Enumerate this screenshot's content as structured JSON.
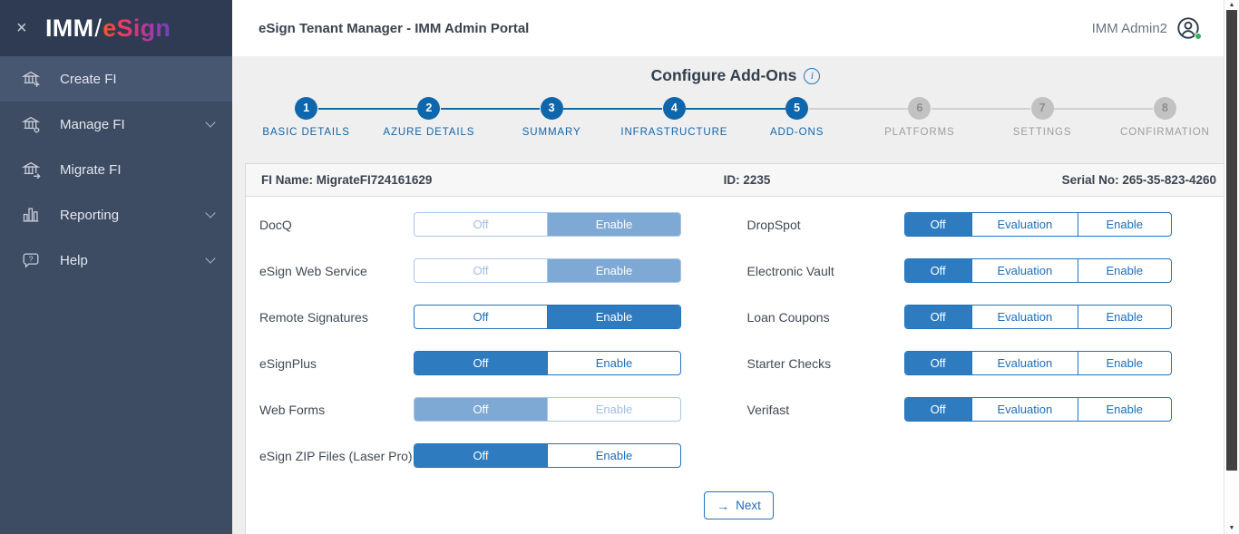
{
  "colors": {
    "accent_blue": "#2E7BC0",
    "step_blue": "#0E67AC",
    "disabled_blue": "#7FA9D5",
    "sidebar_navy": "#3D4B63",
    "sidebar_header_navy": "#2E3B52",
    "content_background": "#EFEFEF",
    "pending_gray": "#C2C2C2",
    "presence_green": "#2FB457"
  },
  "icons": {
    "close": "×",
    "info": "i",
    "next_arrow": "→",
    "scroll_up": "▲",
    "scroll_down": "▼"
  },
  "sidebar": {
    "logo_imm": "IMM",
    "logo_slash": "/",
    "logo_esign": "eSign",
    "items": [
      {
        "label": "Create FI",
        "icon": "bank-plus",
        "active": true,
        "expandable": false
      },
      {
        "label": "Manage FI",
        "icon": "bank-gear",
        "active": false,
        "expandable": true
      },
      {
        "label": "Migrate FI",
        "icon": "bank-arrow",
        "active": false,
        "expandable": false
      },
      {
        "label": "Reporting",
        "icon": "bar-chart",
        "active": false,
        "expandable": true
      },
      {
        "label": "Help",
        "icon": "help-bubble",
        "active": false,
        "expandable": true
      }
    ]
  },
  "header": {
    "title": "eSign Tenant Manager - IMM Admin Portal",
    "user": "IMM Admin2"
  },
  "wizard": {
    "title": "Configure Add-Ons",
    "steps": [
      {
        "num": "1",
        "label": "BASIC DETAILS",
        "state": "active"
      },
      {
        "num": "2",
        "label": "AZURE DETAILS",
        "state": "active"
      },
      {
        "num": "3",
        "label": "SUMMARY",
        "state": "active"
      },
      {
        "num": "4",
        "label": "INFRASTRUCTURE",
        "state": "active"
      },
      {
        "num": "5",
        "label": "ADD-ONS",
        "state": "active"
      },
      {
        "num": "6",
        "label": "PLATFORMS",
        "state": "pending"
      },
      {
        "num": "7",
        "label": "SETTINGS",
        "state": "pending"
      },
      {
        "num": "8",
        "label": "CONFIRMATION",
        "state": "pending"
      }
    ]
  },
  "fi_info": {
    "name": "FI Name: MigrateFI724161629",
    "id": "ID: 2235",
    "serial": "Serial No: 265-35-823-4260"
  },
  "addons": {
    "left": [
      {
        "label": "DocQ",
        "options": [
          "Off",
          "Enable"
        ],
        "selected": "Enable",
        "disabled": true
      },
      {
        "label": "eSign Web Service",
        "options": [
          "Off",
          "Enable"
        ],
        "selected": "Enable",
        "disabled": true
      },
      {
        "label": "Remote Signatures",
        "options": [
          "Off",
          "Enable"
        ],
        "selected": "Enable",
        "disabled": false
      },
      {
        "label": "eSignPlus",
        "options": [
          "Off",
          "Enable"
        ],
        "selected": "Off",
        "disabled": false
      },
      {
        "label": "Web Forms",
        "options": [
          "Off",
          "Enable"
        ],
        "selected": "Off",
        "disabled": true
      },
      {
        "label": "eSign ZIP Files (Laser Pro)",
        "options": [
          "Off",
          "Enable"
        ],
        "selected": "Off",
        "disabled": false
      }
    ],
    "right": [
      {
        "label": "DropSpot",
        "options": [
          "Off",
          "Evaluation",
          "Enable"
        ],
        "selected": "Off",
        "disabled": false
      },
      {
        "label": "Electronic Vault",
        "options": [
          "Off",
          "Evaluation",
          "Enable"
        ],
        "selected": "Off",
        "disabled": false
      },
      {
        "label": "Loan Coupons",
        "options": [
          "Off",
          "Evaluation",
          "Enable"
        ],
        "selected": "Off",
        "disabled": false
      },
      {
        "label": "Starter Checks",
        "options": [
          "Off",
          "Evaluation",
          "Enable"
        ],
        "selected": "Off",
        "disabled": false
      },
      {
        "label": "Verifast",
        "options": [
          "Off",
          "Evaluation",
          "Enable"
        ],
        "selected": "Off",
        "disabled": false
      }
    ]
  },
  "next": {
    "label": "Next"
  }
}
